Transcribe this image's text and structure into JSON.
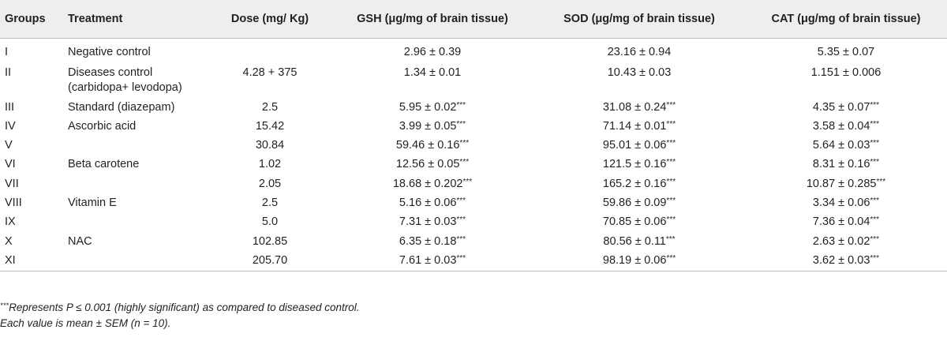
{
  "table": {
    "headers": {
      "groups": "Groups",
      "treatment": "Treatment",
      "dose": "Dose (mg/ Kg)",
      "gsh": "GSH (μg/mg of brain tissue)",
      "sod": "SOD (μg/mg of brain tissue)",
      "cat": "CAT (μg/mg of brain tissue)"
    },
    "rows": [
      {
        "group": "I",
        "treatment": "Negative control",
        "dose": "",
        "gsh": "2.96 ± 0.39",
        "gsh_sig": "",
        "sod": "23.16 ± 0.94",
        "sod_sig": "",
        "cat": "5.35 ± 0.07",
        "cat_sig": ""
      },
      {
        "group": "II",
        "treatment": "Diseases control (carbidopa+ levodopa)",
        "dose": "4.28 + 375",
        "gsh": "1.34 ± 0.01",
        "gsh_sig": "",
        "sod": "10.43 ± 0.03",
        "sod_sig": "",
        "cat": "1.151 ± 0.006",
        "cat_sig": ""
      },
      {
        "group": "III",
        "treatment": "Standard (diazepam)",
        "dose": "2.5",
        "gsh": "5.95 ± 0.02",
        "gsh_sig": "***",
        "sod": "31.08 ± 0.24",
        "sod_sig": "***",
        "cat": "4.35 ± 0.07",
        "cat_sig": "***"
      },
      {
        "group": "IV",
        "treatment": "Ascorbic acid",
        "dose": "15.42",
        "gsh": "3.99 ± 0.05",
        "gsh_sig": "***",
        "sod": "71.14 ± 0.01",
        "sod_sig": "***",
        "cat": "3.58 ± 0.04",
        "cat_sig": "***"
      },
      {
        "group": "V",
        "treatment": "",
        "dose": "30.84",
        "gsh": "59.46 ± 0.16",
        "gsh_sig": "***",
        "sod": "95.01 ± 0.06",
        "sod_sig": "***",
        "cat": "5.64 ± 0.03",
        "cat_sig": "***"
      },
      {
        "group": "VI",
        "treatment": "Beta carotene",
        "dose": "1.02",
        "gsh": "12.56 ± 0.05",
        "gsh_sig": "***",
        "sod": "121.5 ± 0.16",
        "sod_sig": "***",
        "cat": "8.31 ± 0.16",
        "cat_sig": "***"
      },
      {
        "group": "VII",
        "treatment": "",
        "dose": "2.05",
        "gsh": "18.68 ± 0.202",
        "gsh_sig": "***",
        "sod": "165.2 ± 0.16",
        "sod_sig": "***",
        "cat": "10.87 ± 0.285",
        "cat_sig": "***"
      },
      {
        "group": "VIII",
        "treatment": "Vitamin E",
        "dose": "2.5",
        "gsh": "5.16 ± 0.06",
        "gsh_sig": "***",
        "sod": "59.86 ± 0.09",
        "sod_sig": "***",
        "cat": "3.34 ± 0.06",
        "cat_sig": "***"
      },
      {
        "group": "IX",
        "treatment": "",
        "dose": "5.0",
        "gsh": "7.31 ± 0.03",
        "gsh_sig": "***",
        "sod": "70.85 ± 0.06",
        "sod_sig": "***",
        "cat": "7.36 ± 0.04",
        "cat_sig": "***"
      },
      {
        "group": "X",
        "treatment": "NAC",
        "dose": "102.85",
        "gsh": "6.35 ± 0.18",
        "gsh_sig": "***",
        "sod": "80.56 ± 0.11",
        "sod_sig": "***",
        "cat": "2.63 ± 0.02",
        "cat_sig": "***"
      },
      {
        "group": "XI",
        "treatment": "",
        "dose": "205.70",
        "gsh": "7.61 ± 0.03",
        "gsh_sig": "***",
        "sod": "98.19 ± 0.06",
        "sod_sig": "***",
        "cat": "3.62 ± 0.03",
        "cat_sig": "***"
      }
    ]
  },
  "footnotes": {
    "sig_mark": "***",
    "sig_text": "Represents P ≤ 0.001 (highly significant) as compared to diseased control.",
    "mean_text": "Each value is mean ± SEM (n = 10)."
  },
  "colors": {
    "header_background": "#eeeeee",
    "text": "#231f20",
    "rule": "#bdbdbd"
  }
}
